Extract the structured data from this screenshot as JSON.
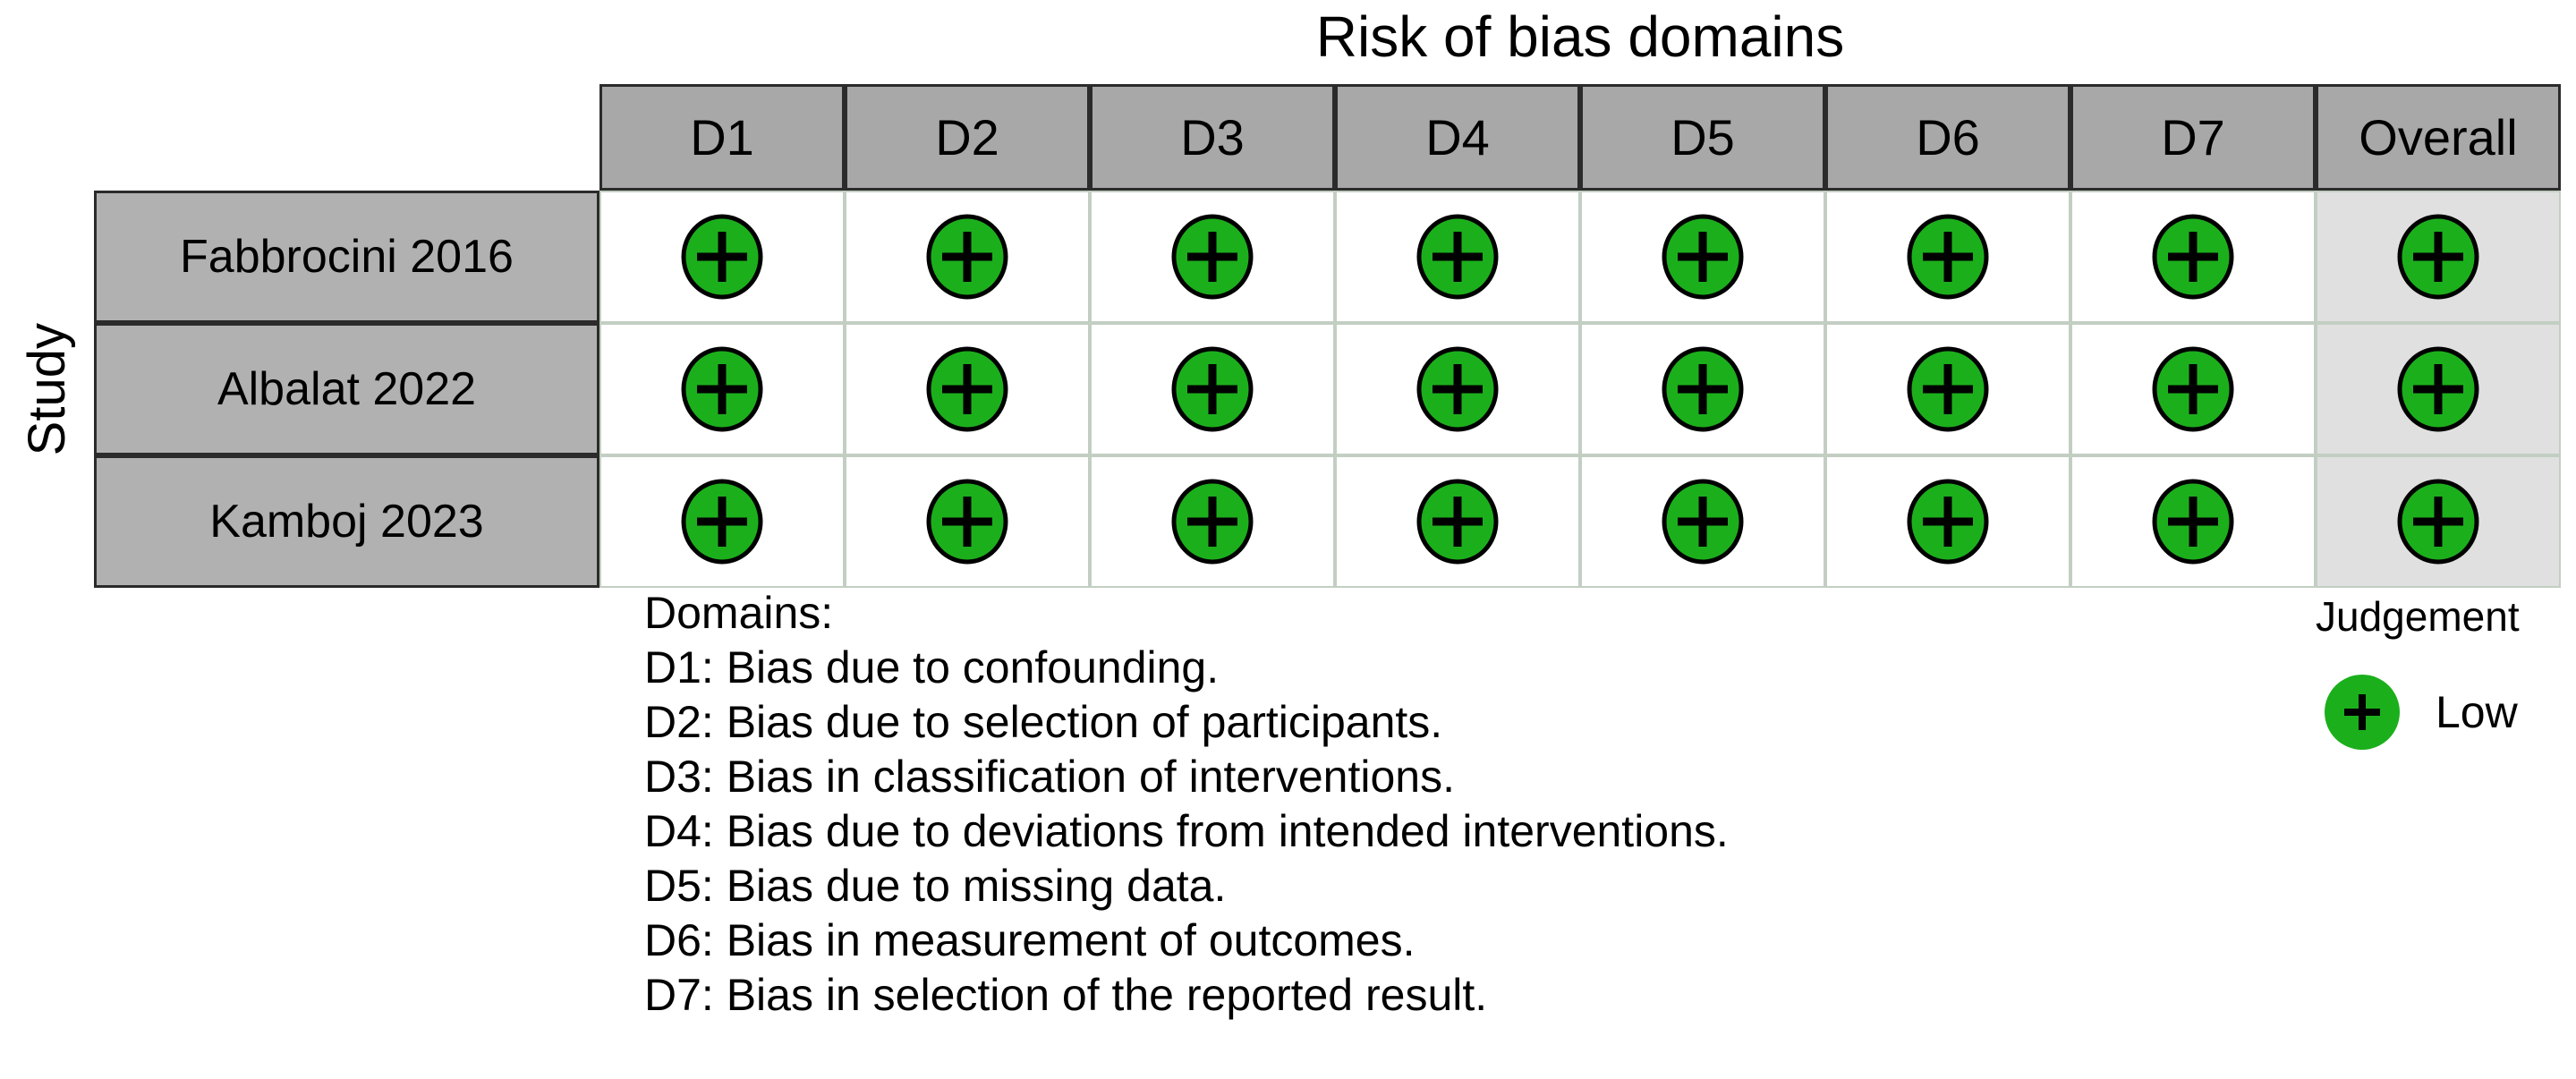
{
  "title": "Risk of bias domains",
  "y_axis_label": "Study",
  "columns": [
    "D1",
    "D2",
    "D3",
    "D4",
    "D5",
    "D6",
    "D7",
    "Overall"
  ],
  "studies": [
    {
      "name": "Fabbrocini 2016",
      "judgements": [
        "Low",
        "Low",
        "Low",
        "Low",
        "Low",
        "Low",
        "Low",
        "Low"
      ]
    },
    {
      "name": "Albalat 2022",
      "judgements": [
        "Low",
        "Low",
        "Low",
        "Low",
        "Low",
        "Low",
        "Low",
        "Low"
      ]
    },
    {
      "name": "Kamboj 2023",
      "judgements": [
        "Low",
        "Low",
        "Low",
        "Low",
        "Low",
        "Low",
        "Low",
        "Low"
      ]
    }
  ],
  "footnote": {
    "lines": [
      "Domains:",
      "D1: Bias due to confounding.",
      "D2: Bias due to selection of participants.",
      "D3: Bias in classification of interventions.",
      "D4: Bias due to deviations from intended interventions.",
      "D5: Bias due to missing data.",
      "D6: Bias in measurement of outcomes.",
      "D7: Bias in selection of the reported result."
    ]
  },
  "legend": {
    "title": "Judgement",
    "items": [
      {
        "label": "Low",
        "symbol": "plus-circle",
        "color": "#1CAF1C"
      }
    ]
  },
  "colors": {
    "low": "#1CAF1C",
    "header_bg": "#a8a8a8",
    "label_bg": "#b1b1b1",
    "overall_bg": "#e0e0e0",
    "grid_line": "#c3cec3",
    "dark_border": "#2b2b2b",
    "background": "#ffffff",
    "text": "#000000"
  },
  "chart_data": {
    "type": "table",
    "title": "Risk of bias domains",
    "row_axis_label": "Study",
    "columns": [
      "D1",
      "D2",
      "D3",
      "D4",
      "D5",
      "D6",
      "D7",
      "Overall"
    ],
    "rows": [
      {
        "study": "Fabbrocini 2016",
        "values": [
          "Low",
          "Low",
          "Low",
          "Low",
          "Low",
          "Low",
          "Low",
          "Low"
        ]
      },
      {
        "study": "Albalat 2022",
        "values": [
          "Low",
          "Low",
          "Low",
          "Low",
          "Low",
          "Low",
          "Low",
          "Low"
        ]
      },
      {
        "study": "Kamboj 2023",
        "values": [
          "Low",
          "Low",
          "Low",
          "Low",
          "Low",
          "Low",
          "Low",
          "Low"
        ]
      }
    ],
    "legend": {
      "Low": "green circle with plus sign"
    },
    "domain_definitions": [
      "D1: Bias due to confounding.",
      "D2: Bias due to selection of participants.",
      "D3: Bias in classification of interventions.",
      "D4: Bias due to deviations from intended interventions.",
      "D5: Bias due to missing data.",
      "D6: Bias in measurement of outcomes.",
      "D7: Bias in selection of the reported result."
    ],
    "layout_hints": {
      "grid": "on",
      "legend_position": "bottom-right",
      "overall_column_shaded": true
    }
  }
}
